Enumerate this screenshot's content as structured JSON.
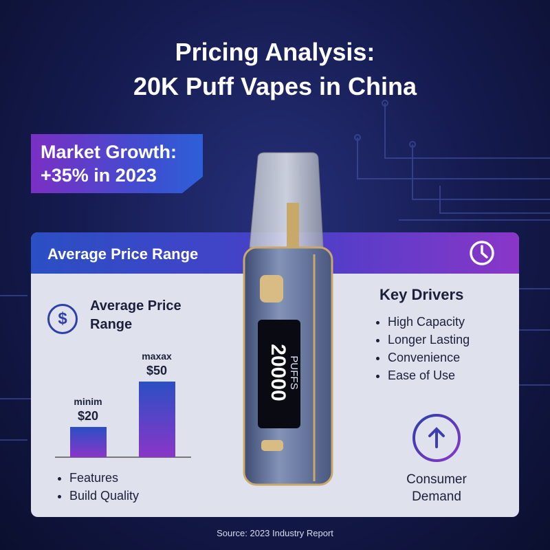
{
  "header": {
    "title_lines": [
      "Pricing Analysis:",
      "20K Puff Vapes in China"
    ]
  },
  "badge": {
    "lines": [
      "Market Growth:",
      "+35% in 2023"
    ]
  },
  "panel": {
    "title": "Average Price Range"
  },
  "price": {
    "icon": "$",
    "title_lines": [
      "Average Price",
      "Range"
    ],
    "chart": {
      "type": "bar",
      "categories": [
        "minim",
        "maxax"
      ],
      "values": [
        20,
        50
      ],
      "value_labels": [
        "$20",
        "$50"
      ]
    },
    "notes": [
      "Features",
      "Build Quality"
    ]
  },
  "drivers": {
    "title": "Key Drivers",
    "items": [
      "High Capacity",
      "Longer Lasting",
      "Convenience",
      "Ease of Use"
    ]
  },
  "demand": {
    "lines": [
      "Consumer",
      "Demand"
    ]
  },
  "device": {
    "display": [
      "20000",
      "PUFFS"
    ]
  },
  "source": "Source: 2023 Industry Report"
}
